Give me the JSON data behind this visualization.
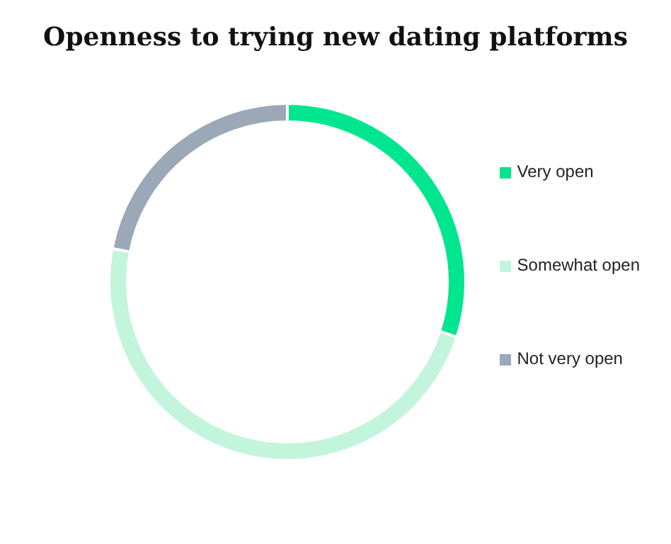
{
  "chart_data": {
    "type": "donut",
    "title": "Openness to trying new dating platforms",
    "categories": [
      "Very open",
      "Somewhat open",
      "Not very open"
    ],
    "values": [
      30,
      48,
      22
    ],
    "colors": [
      "#00e68f",
      "#c3f5dc",
      "#9aa8b8"
    ],
    "legend": "right"
  }
}
